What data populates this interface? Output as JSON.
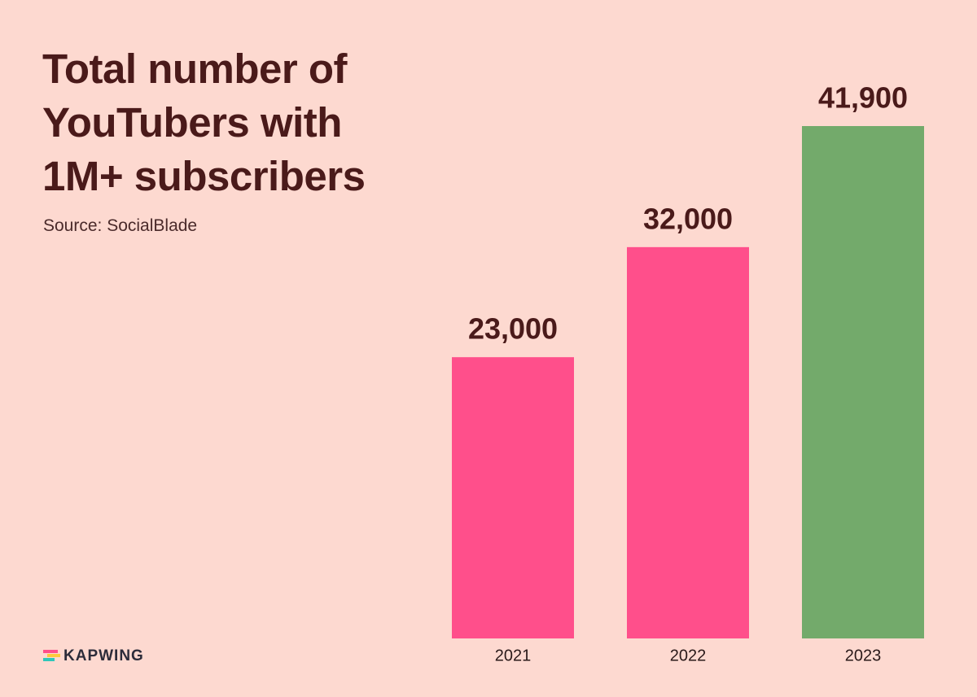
{
  "chart_data": {
    "type": "bar",
    "title": "Total number of YouTubers with 1M+ subscribers",
    "subtitle": "Source: SocialBlade",
    "brand": "KAPWING",
    "categories": [
      "2021",
      "2022",
      "2023"
    ],
    "values": [
      23000,
      32000,
      41900
    ],
    "value_labels": [
      "23,000",
      "32,000",
      "41,900"
    ],
    "colors": [
      "#ff4f8b",
      "#ff4f8b",
      "#73aa6b"
    ]
  }
}
